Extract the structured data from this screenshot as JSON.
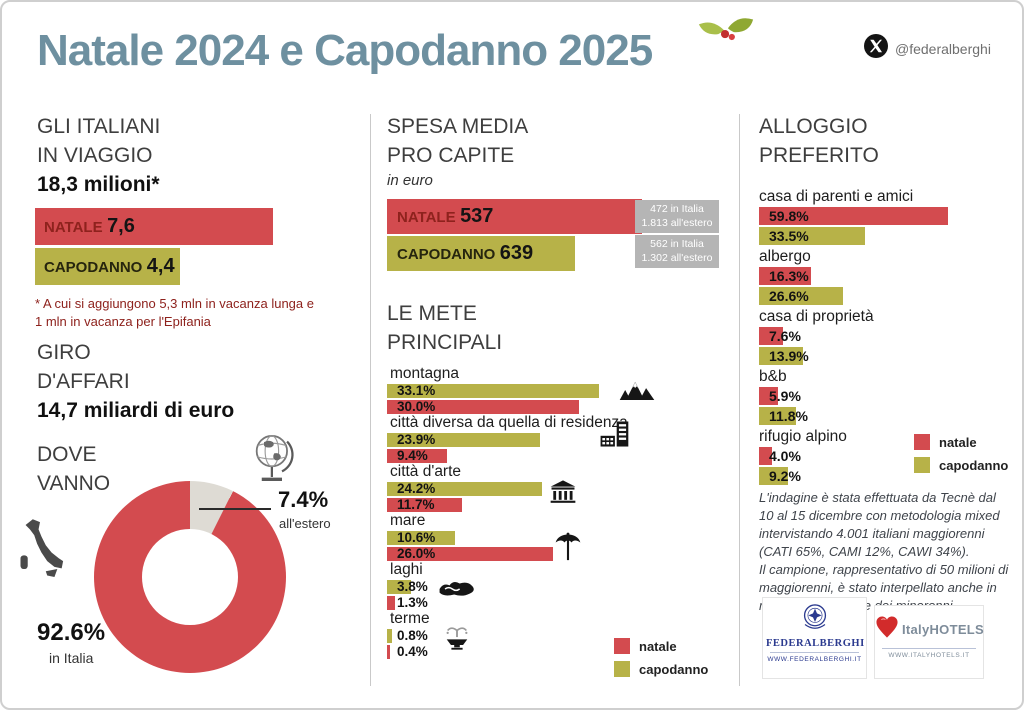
{
  "colors": {
    "natale": "#d34b4f",
    "capodanno": "#b7b248",
    "title": "#6e90a0",
    "maroon": "#8e221d",
    "gray_box": "#b5b5b5",
    "donut_gray": "#dedbd4",
    "divider": "#c9c9c9",
    "methodology": "#3f444b",
    "logo_blue": "#2b3a8f",
    "logo_gray": "#7e8c9a"
  },
  "header": {
    "title": "Natale 2024 e Capodanno 2025",
    "social_handle": "@federalberghi"
  },
  "left": {
    "travelers": {
      "line1": "GLI ITALIANI",
      "line2": "IN VIAGGIO",
      "value": "18,3 milioni*",
      "natale_label": "NATALE",
      "natale_value": "7,6",
      "capodanno_label": "CAPODANNO",
      "capodanno_value": "4,4",
      "footnote_line1": "* A cui si aggiungono 5,3 mln in vacanza lunga e",
      "footnote_line2": "1 mln in vacanza per l'Epifania"
    },
    "business": {
      "line1": "GIRO",
      "line2": "D'AFFARI",
      "value": "14,7 miliardi di euro"
    },
    "where": {
      "line1": "DOVE",
      "line2": "VANNO",
      "abroad_value": 7.4,
      "abroad_pct": "7.4%",
      "abroad_label": "all'estero",
      "domestic_pct": "92.6%",
      "domestic_label": "in Italia"
    }
  },
  "spending": {
    "line1": "SPESA MEDIA",
    "line2": "PRO CAPITE",
    "unit": "in euro",
    "natale_label": "NATALE",
    "natale_value": "537",
    "capodanno_label": "CAPODANNO",
    "capodanno_value": "639",
    "natale_note_line1": "472 in Italia",
    "natale_note_line2": "1.813 all'estero",
    "capodanno_note_line1": "562 in Italia",
    "capodanno_note_line2": "1.302 all'estero"
  },
  "destinations": {
    "line1": "LE METE",
    "line2": "PRINCIPALI",
    "items": [
      {
        "label": "montagna",
        "icon": "mountains-icon",
        "capodanno": 33.1,
        "natale": 30.0,
        "capodanno_pct": "33.1%",
        "natale_pct": "30.0%"
      },
      {
        "label": "città diversa da quella di residenza",
        "icon": "city-buildings-icon",
        "capodanno": 23.9,
        "natale": 9.4,
        "capodanno_pct": "23.9%",
        "natale_pct": "9.4%"
      },
      {
        "label": "città d'arte",
        "icon": "classical-building-icon",
        "capodanno": 24.2,
        "natale": 11.7,
        "capodanno_pct": "24.2%",
        "natale_pct": "11.7%"
      },
      {
        "label": "mare",
        "icon": "beach-umbrella-icon",
        "capodanno": 10.6,
        "natale": 26.0,
        "capodanno_pct": "10.6%",
        "natale_pct": "26.0%"
      },
      {
        "label": "laghi",
        "icon": "lake-icon",
        "capodanno": 3.8,
        "natale": 1.3,
        "capodanno_pct": "3.8%",
        "natale_pct": "1.3%"
      },
      {
        "label": "terme",
        "icon": "fountain-icon",
        "capodanno": 0.8,
        "natale": 0.4,
        "capodanno_pct": "0.8%",
        "natale_pct": "0.4%"
      }
    ]
  },
  "accommodation": {
    "line1": "ALLOGGIO",
    "line2": "PREFERITO",
    "items": [
      {
        "label": "casa di parenti e amici",
        "natale": 59.8,
        "capodanno": 33.5,
        "natale_pct": "59.8%",
        "capodanno_pct": "33.5%"
      },
      {
        "label": "albergo",
        "natale": 16.3,
        "capodanno": 26.6,
        "natale_pct": "16.3%",
        "capodanno_pct": "26.6%"
      },
      {
        "label": "casa di proprietà",
        "natale": 7.6,
        "capodanno": 13.9,
        "natale_pct": "7.6%",
        "capodanno_pct": "13.9%"
      },
      {
        "label": "b&b",
        "natale": 5.9,
        "capodanno": 11.8,
        "natale_pct": "5.9%",
        "capodanno_pct": "11.8%"
      },
      {
        "label": "rifugio alpino",
        "natale": 4.0,
        "capodanno": 9.2,
        "natale_pct": "4.0%",
        "capodanno_pct": "9.2%"
      }
    ]
  },
  "legend": {
    "natale": "natale",
    "capodanno": "capodanno"
  },
  "methodology": {
    "para1": "L'indagine è stata effettuata da Tecnè dal 10 al 15 dicembre con metodologia mixed intervistando 4.001 italiani maggiorenni (CATI 65%, CAMI 12%, CAWI 34%).",
    "para2": "Il campione, rappresentativo di 50 milioni di maggiorenni, è stato interpellato anche in merito alle vacanze dei minorenni"
  },
  "logos": {
    "federalberghi": {
      "name": "FEDERALBERGHI",
      "url": "WWW.FEDERALBERGHI.IT"
    },
    "italyhotels": {
      "name": "ItalyHOTELS",
      "url": "WWW.ITALYHOTELS.IT"
    }
  },
  "chart_data": [
    {
      "type": "bar",
      "title": "Gli italiani in viaggio (milioni)",
      "categories": [
        "Natale",
        "Capodanno"
      ],
      "values": [
        7.6,
        4.4
      ],
      "note": "A cui si aggiungono 5,3 mln in vacanza lunga e 1 mln in vacanza per l'Epifania; totale 18,3 milioni"
    },
    {
      "type": "bar",
      "title": "Spesa media pro capite (euro)",
      "categories": [
        "Natale",
        "Capodanno"
      ],
      "values": [
        537,
        639
      ],
      "annotations": [
        "472 in Italia / 1.813 all'estero",
        "562 in Italia / 1.302 all'estero"
      ]
    },
    {
      "type": "pie",
      "title": "Dove vanno",
      "labels": [
        "in Italia",
        "all'estero"
      ],
      "values": [
        92.6,
        7.4
      ]
    },
    {
      "type": "bar",
      "title": "Le mete principali (%)",
      "categories": [
        "montagna",
        "città diversa da quella di residenza",
        "città d'arte",
        "mare",
        "laghi",
        "terme"
      ],
      "series": [
        {
          "name": "capodanno",
          "values": [
            33.1,
            23.9,
            24.2,
            10.6,
            3.8,
            0.8
          ]
        },
        {
          "name": "natale",
          "values": [
            30.0,
            9.4,
            11.7,
            26.0,
            1.3,
            0.4
          ]
        }
      ],
      "legend_position": "bottom-right"
    },
    {
      "type": "bar",
      "title": "Alloggio preferito (%)",
      "categories": [
        "casa di parenti e amici",
        "albergo",
        "casa di proprietà",
        "b&b",
        "rifugio alpino"
      ],
      "series": [
        {
          "name": "natale",
          "values": [
            59.8,
            16.3,
            7.6,
            5.9,
            4.0
          ]
        },
        {
          "name": "capodanno",
          "values": [
            33.5,
            26.6,
            13.9,
            11.8,
            9.2
          ]
        }
      ],
      "legend_position": "bottom-right"
    }
  ]
}
